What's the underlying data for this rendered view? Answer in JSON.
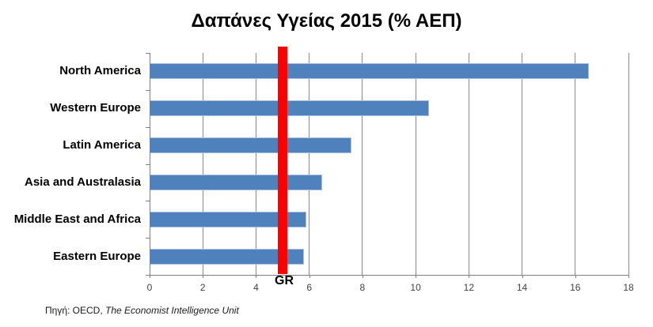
{
  "title": "Δαπάνες Υγείας 2015 (% ΑΕΠ)",
  "source": {
    "prefix": "Πηγή: OECD, ",
    "italic": "The Economist Intelligence Unit"
  },
  "chart_data": {
    "type": "bar",
    "orientation": "horizontal",
    "title": "Δαπάνες Υγείας 2015 (% ΑΕΠ)",
    "categories": [
      "North America",
      "Western Europe",
      "Latin America",
      "Asia and Australasia",
      "Middle East and Africa",
      "Eastern Europe"
    ],
    "values": [
      16.5,
      10.5,
      7.6,
      6.5,
      5.9,
      5.8
    ],
    "xlabel": "",
    "ylabel": "",
    "xlim": [
      0,
      18
    ],
    "xticks": [
      0,
      2,
      4,
      6,
      8,
      10,
      12,
      14,
      16,
      18
    ],
    "grid": true,
    "legend": "none",
    "bar_color": "#4f81bd",
    "reference_line": {
      "label": "GR",
      "value": 5.0,
      "color": "#fb0200"
    }
  }
}
